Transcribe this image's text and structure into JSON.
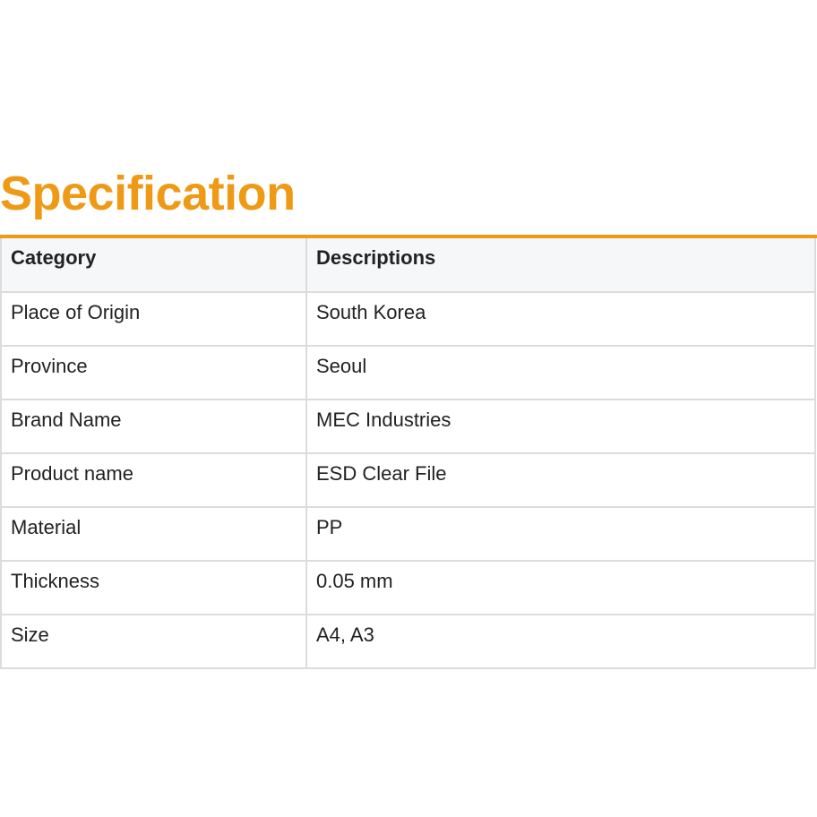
{
  "title": "Specification",
  "accent_color": "#ef9a17",
  "table": {
    "headers": [
      "Category",
      "Descriptions"
    ],
    "rows": [
      [
        "Place of Origin",
        "South Korea"
      ],
      [
        "Province",
        "Seoul"
      ],
      [
        "Brand Name",
        "MEC Industries"
      ],
      [
        "Product name",
        "ESD Clear File"
      ],
      [
        "Material",
        "PP"
      ],
      [
        "Thickness",
        "0.05 mm"
      ],
      [
        "Size",
        "A4, A3"
      ]
    ]
  }
}
